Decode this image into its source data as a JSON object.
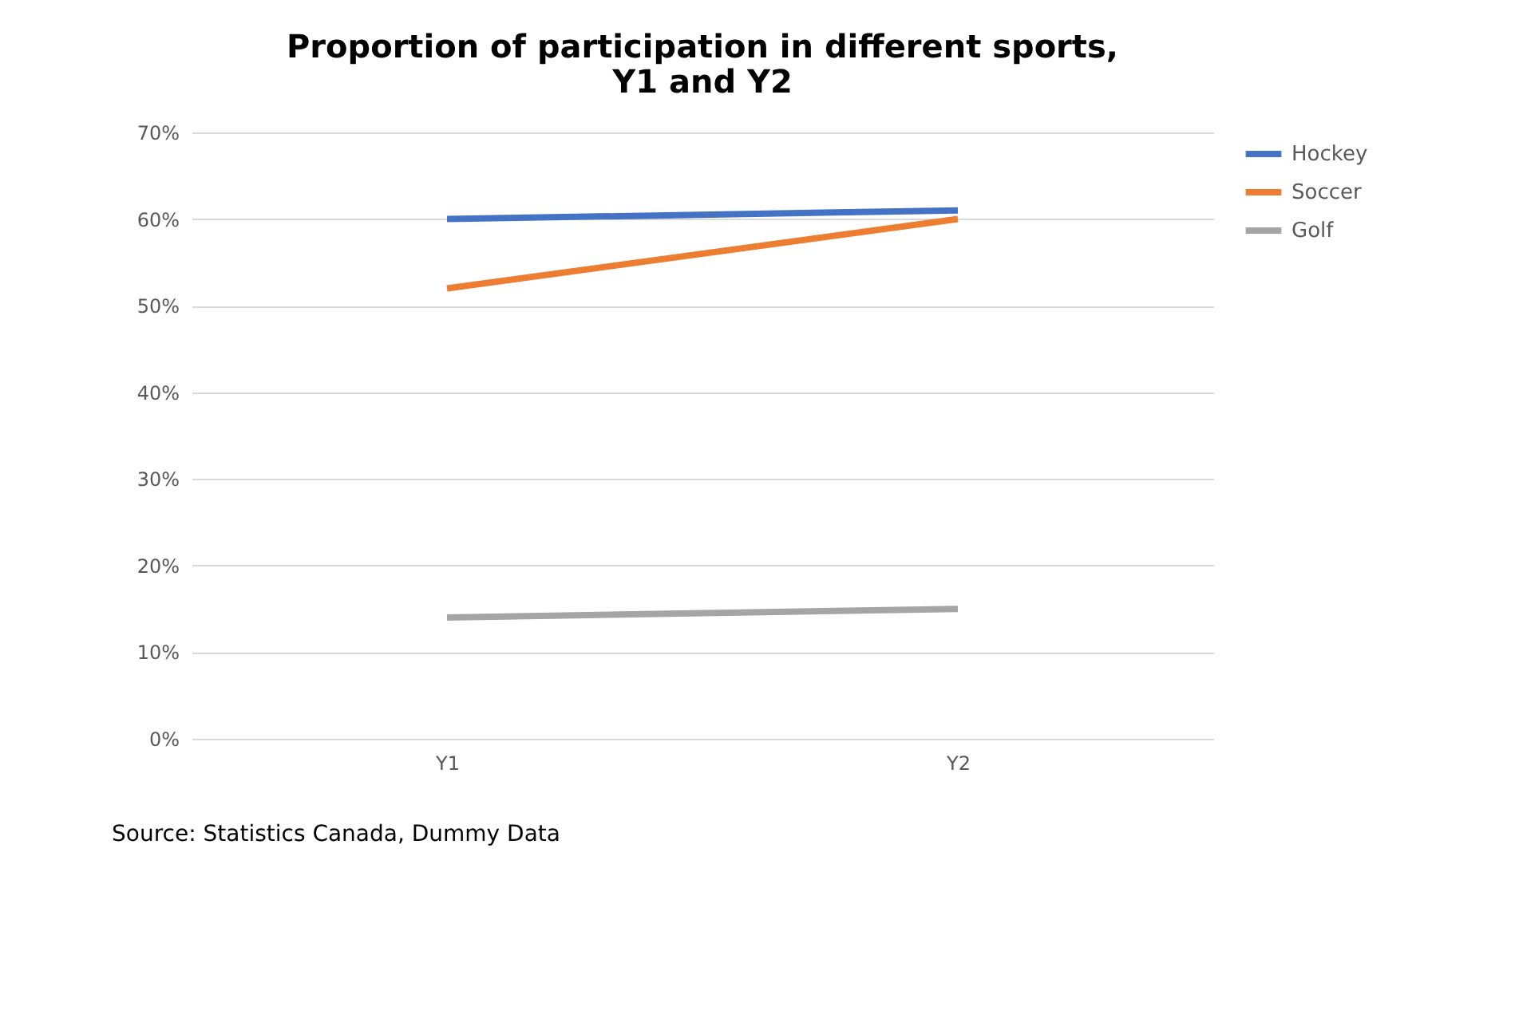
{
  "chart_data": {
    "type": "line",
    "title": [
      "Proportion of participation in different sports,",
      "Y1 and Y2"
    ],
    "categories": [
      "Y1",
      "Y2"
    ],
    "series": [
      {
        "name": "Hockey",
        "color": "#4472c4",
        "values": [
          60,
          61
        ]
      },
      {
        "name": "Soccer",
        "color": "#ed7d31",
        "values": [
          52,
          60
        ]
      },
      {
        "name": "Golf",
        "color": "#a5a5a5",
        "values": [
          14,
          15
        ]
      }
    ],
    "ylim": [
      0,
      70
    ],
    "yticks": [
      {
        "value": 0,
        "label": "0%"
      },
      {
        "value": 10,
        "label": "10%"
      },
      {
        "value": 20,
        "label": "20%"
      },
      {
        "value": 30,
        "label": "30%"
      },
      {
        "value": 40,
        "label": "40%"
      },
      {
        "value": 50,
        "label": "50%"
      },
      {
        "value": 60,
        "label": "60%"
      },
      {
        "value": 70,
        "label": "70%"
      }
    ],
    "grid": "y",
    "legend": "right",
    "marker": "none",
    "line_style": "solid",
    "annotations": [
      "Source:  Statistics Canada, Dummy Data"
    ]
  }
}
